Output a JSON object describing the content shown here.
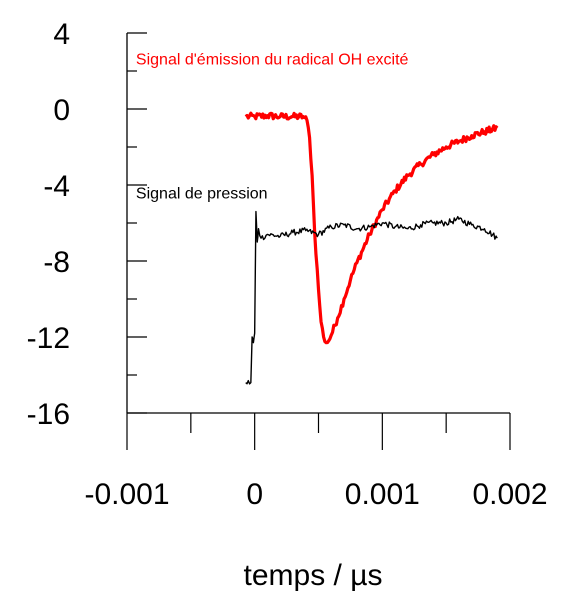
{
  "chart_data": {
    "type": "line",
    "title": "",
    "xlabel": "temps / µs",
    "ylabel": "",
    "xlim": [
      -0.001,
      0.002
    ],
    "ylim": [
      -16,
      4
    ],
    "x_ticks": [
      -0.001,
      0,
      0.001,
      0.002
    ],
    "x_tick_labels": [
      "-0.001",
      "0",
      "0.001",
      "0.002"
    ],
    "x_minor_step": 0.0005,
    "y_ticks": [
      4,
      0,
      -4,
      -8,
      -12,
      -16
    ],
    "y_tick_labels": [
      "4",
      "0",
      "-4",
      "-8",
      "-12",
      "-16"
    ],
    "y_minor_step": 2,
    "grid": false,
    "legend": "none",
    "annotations": [
      {
        "text": "Signal d'émission du radical OH excité",
        "color": "#ff0000",
        "x": -0.00093,
        "y": 2.35
      },
      {
        "text": "Signal de pression",
        "color": "#000000",
        "x": -0.00093,
        "y": -4.7
      }
    ],
    "series": [
      {
        "color": "#ff0000",
        "stroke_width": 3.2,
        "noise": 0.18,
        "x": [
          -7e-05,
          0,
          0.0001,
          0.0002,
          0.0003,
          0.00038,
          0.00041,
          0.00043,
          0.00045,
          0.00047,
          0.0005,
          0.00052,
          0.00054,
          0.00056,
          0.00058,
          0.0006,
          0.00065,
          0.0007,
          0.00075,
          0.0008,
          0.0009,
          0.001,
          0.0011,
          0.0012,
          0.0013,
          0.0014,
          0.0015,
          0.0016,
          0.0017,
          0.0018,
          0.0019
        ],
        "y": [
          -0.4,
          -0.4,
          -0.35,
          -0.4,
          -0.4,
          -0.4,
          -0.6,
          -1.5,
          -3.5,
          -6.5,
          -9.5,
          -11.2,
          -12.0,
          -12.3,
          -12.2,
          -11.9,
          -11.0,
          -10.0,
          -9.0,
          -8.1,
          -6.6,
          -5.3,
          -4.3,
          -3.5,
          -2.9,
          -2.4,
          -2.0,
          -1.7,
          -1.4,
          -1.2,
          -1.0
        ]
      },
      {
        "color": "#000000",
        "stroke_width": 1.4,
        "noise": 0.16,
        "x": [
          -7e-05,
          -3e-05,
          -2e-05,
          -1e-05,
          0,
          1e-05,
          2e-05,
          3e-05,
          5e-05,
          0.0001,
          0.0002,
          0.0003,
          0.0004,
          0.0005,
          0.0006,
          0.0007,
          0.0008,
          0.0009,
          0.001,
          0.0011,
          0.0012,
          0.0013,
          0.0014,
          0.0015,
          0.0016,
          0.0017,
          0.0018,
          0.0019
        ],
        "y": [
          -14.4,
          -14.4,
          -12.0,
          -12.3,
          -11.8,
          -5.4,
          -7.0,
          -6.3,
          -6.8,
          -6.6,
          -6.7,
          -6.5,
          -6.4,
          -6.6,
          -6.2,
          -6.1,
          -6.3,
          -6.2,
          -6.0,
          -6.2,
          -6.3,
          -6.1,
          -6.0,
          -6.0,
          -5.8,
          -6.1,
          -6.3,
          -6.8
        ]
      }
    ]
  }
}
